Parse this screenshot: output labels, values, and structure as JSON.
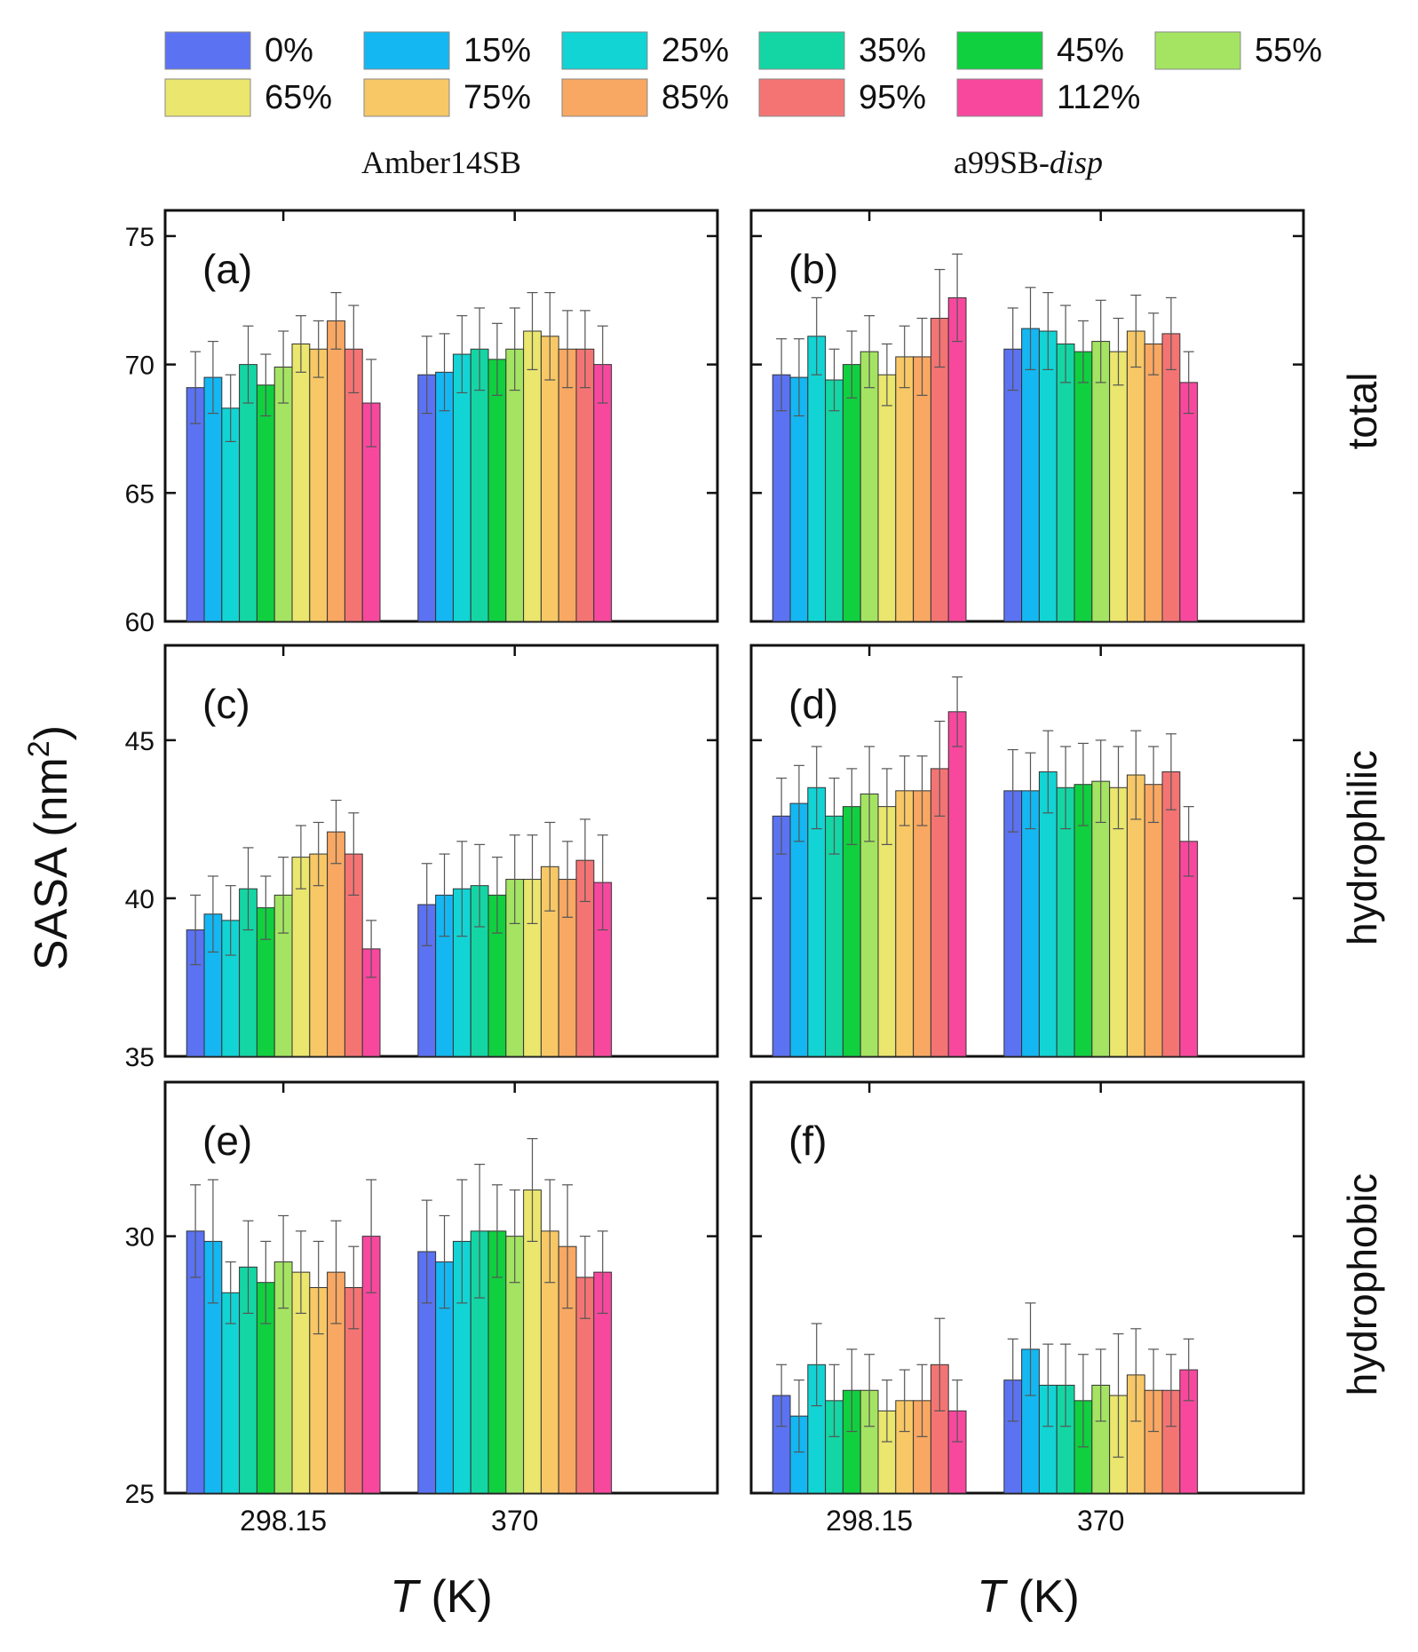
{
  "figure": {
    "column_titles": [
      {
        "text": "Amber14SB"
      },
      {
        "text": "a99SB-",
        "italic_suffix": "disp"
      }
    ],
    "row_labels": [
      "total",
      "hydrophilic",
      "hydrophobic"
    ],
    "y_axis_label": {
      "text": "SASA (nm",
      "superscript": "2",
      "suffix": ")"
    },
    "x_axis_label": {
      "symbol": "T",
      "unit": " (K)"
    }
  },
  "chart_data": {
    "type": "bar",
    "series": [
      {
        "name": "0%",
        "color": "#5B72F2"
      },
      {
        "name": "15%",
        "color": "#14B7F2"
      },
      {
        "name": "25%",
        "color": "#12D4D4"
      },
      {
        "name": "35%",
        "color": "#14D6A4"
      },
      {
        "name": "45%",
        "color": "#10D040"
      },
      {
        "name": "55%",
        "color": "#A4E462"
      },
      {
        "name": "65%",
        "color": "#EAE66E"
      },
      {
        "name": "75%",
        "color": "#F8C866"
      },
      {
        "name": "85%",
        "color": "#F8A862"
      },
      {
        "name": "95%",
        "color": "#F47474"
      },
      {
        "name": "112%",
        "color": "#F8489E"
      }
    ],
    "categories": [
      "298.15",
      "370"
    ],
    "panels": [
      {
        "label": "(a)",
        "row": "total",
        "force_field": "Amber14SB",
        "ylim": [
          60,
          76
        ],
        "yticks": [
          60,
          65,
          70,
          75
        ],
        "values": [
          [
            69.1,
            69.5,
            68.3,
            70.0,
            69.2,
            69.9,
            70.8,
            70.6,
            71.7,
            70.6,
            68.5
          ],
          [
            69.6,
            69.7,
            70.4,
            70.6,
            70.2,
            70.6,
            71.3,
            71.1,
            70.6,
            70.6,
            70.0
          ]
        ],
        "errors": [
          [
            1.4,
            1.4,
            1.3,
            1.5,
            1.2,
            1.4,
            1.1,
            1.1,
            1.1,
            1.7,
            1.7
          ],
          [
            1.5,
            1.5,
            1.5,
            1.6,
            1.4,
            1.6,
            1.5,
            1.7,
            1.5,
            1.5,
            1.5
          ]
        ]
      },
      {
        "label": "(b)",
        "row": "total",
        "force_field": "a99SB-disp",
        "ylim": [
          60,
          76
        ],
        "yticks": [
          60,
          65,
          70,
          75
        ],
        "values": [
          [
            69.6,
            69.5,
            71.1,
            69.4,
            70.0,
            70.5,
            69.6,
            70.3,
            70.3,
            71.8,
            72.6
          ],
          [
            70.6,
            71.4,
            71.3,
            70.8,
            70.5,
            70.9,
            70.5,
            71.3,
            70.8,
            71.2,
            69.3
          ]
        ],
        "errors": [
          [
            1.4,
            1.5,
            1.5,
            1.2,
            1.3,
            1.4,
            1.2,
            1.2,
            1.5,
            1.9,
            1.7
          ],
          [
            1.6,
            1.6,
            1.5,
            1.5,
            1.2,
            1.6,
            1.3,
            1.4,
            1.2,
            1.4,
            1.2
          ]
        ]
      },
      {
        "label": "(c)",
        "row": "hydrophilic",
        "force_field": "Amber14SB",
        "ylim": [
          35,
          48
        ],
        "yticks": [
          35,
          40,
          45
        ],
        "values": [
          [
            39.0,
            39.5,
            39.3,
            40.3,
            39.7,
            40.1,
            41.3,
            41.4,
            42.1,
            41.4,
            38.4
          ],
          [
            39.8,
            40.1,
            40.3,
            40.4,
            40.1,
            40.6,
            40.6,
            41.0,
            40.6,
            41.2,
            40.5
          ]
        ],
        "errors": [
          [
            1.1,
            1.2,
            1.1,
            1.3,
            1.0,
            1.2,
            1.0,
            1.0,
            1.0,
            1.3,
            0.9
          ],
          [
            1.3,
            1.3,
            1.5,
            1.3,
            1.2,
            1.4,
            1.4,
            1.4,
            1.2,
            1.3,
            1.5
          ]
        ]
      },
      {
        "label": "(d)",
        "row": "hydrophilic",
        "force_field": "a99SB-disp",
        "ylim": [
          35,
          48
        ],
        "yticks": [
          35,
          40,
          45
        ],
        "values": [
          [
            42.6,
            43.0,
            43.5,
            42.6,
            42.9,
            43.3,
            42.9,
            43.4,
            43.4,
            44.1,
            45.9
          ],
          [
            43.4,
            43.4,
            44.0,
            43.5,
            43.6,
            43.7,
            43.5,
            43.9,
            43.6,
            44.0,
            41.8
          ]
        ],
        "errors": [
          [
            1.2,
            1.2,
            1.3,
            1.2,
            1.2,
            1.5,
            1.2,
            1.1,
            1.1,
            1.5,
            1.1
          ],
          [
            1.3,
            1.2,
            1.3,
            1.3,
            1.3,
            1.3,
            1.3,
            1.4,
            1.2,
            1.2,
            1.1
          ]
        ]
      },
      {
        "label": "(e)",
        "row": "hydrophobic",
        "force_field": "Amber14SB",
        "ylim": [
          25,
          33
        ],
        "yticks": [
          25,
          30
        ],
        "values": [
          [
            30.1,
            29.9,
            28.9,
            29.4,
            29.1,
            29.5,
            29.3,
            29.0,
            29.3,
            29.0,
            30.0
          ],
          [
            29.7,
            29.5,
            29.9,
            30.1,
            30.1,
            30.0,
            30.9,
            30.1,
            29.8,
            29.2,
            29.3
          ]
        ],
        "errors": [
          [
            0.9,
            1.2,
            0.6,
            0.9,
            0.8,
            0.9,
            0.8,
            0.9,
            1.0,
            0.8,
            1.1
          ],
          [
            1.0,
            0.9,
            1.2,
            1.3,
            0.9,
            0.9,
            1.0,
            1.0,
            1.2,
            0.8,
            0.8
          ]
        ]
      },
      {
        "label": "(f)",
        "row": "hydrophobic",
        "force_field": "a99SB-disp",
        "ylim": [
          25,
          33
        ],
        "yticks": [
          25,
          30
        ],
        "values": [
          [
            26.9,
            26.5,
            27.5,
            26.8,
            27.0,
            27.0,
            26.6,
            26.8,
            26.8,
            27.5,
            26.6
          ],
          [
            27.2,
            27.8,
            27.1,
            27.1,
            26.8,
            27.1,
            26.9,
            27.3,
            27.0,
            27.0,
            27.4
          ]
        ],
        "errors": [
          [
            0.6,
            0.7,
            0.8,
            0.7,
            0.8,
            0.7,
            0.6,
            0.6,
            0.7,
            0.9,
            0.6
          ],
          [
            0.8,
            0.9,
            0.8,
            0.8,
            0.9,
            0.7,
            1.2,
            0.9,
            0.8,
            0.7,
            0.6
          ]
        ]
      }
    ]
  }
}
